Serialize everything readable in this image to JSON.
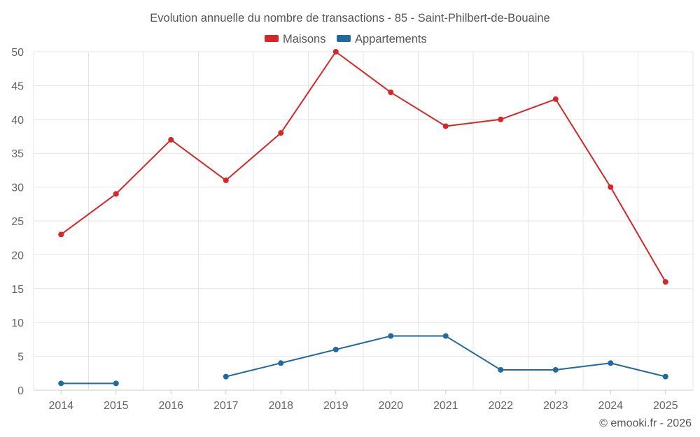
{
  "chart_data": {
    "type": "line",
    "title": "Evolution annuelle du nombre de transactions - 85 - Saint-Philbert-de-Bouaine",
    "categories": [
      "2014",
      "2015",
      "2016",
      "2017",
      "2018",
      "2019",
      "2020",
      "2021",
      "2022",
      "2023",
      "2024",
      "2025"
    ],
    "series": [
      {
        "name": "Maisons",
        "color": "#d62728",
        "values": [
          23,
          29,
          37,
          31,
          38,
          50,
          44,
          39,
          40,
          43,
          30,
          16
        ]
      },
      {
        "name": "Appartements",
        "color": "#1f6a9e",
        "values": [
          1,
          1,
          null,
          2,
          4,
          6,
          8,
          8,
          3,
          3,
          4,
          2
        ]
      }
    ],
    "yticks": [
      0,
      5,
      10,
      15,
      20,
      25,
      30,
      35,
      40,
      45,
      50
    ],
    "ylim": [
      0,
      50
    ],
    "xlabel": "",
    "ylabel": "",
    "grid": true,
    "legend_position": "top-center"
  },
  "credit": "© emooki.fr - 2026"
}
